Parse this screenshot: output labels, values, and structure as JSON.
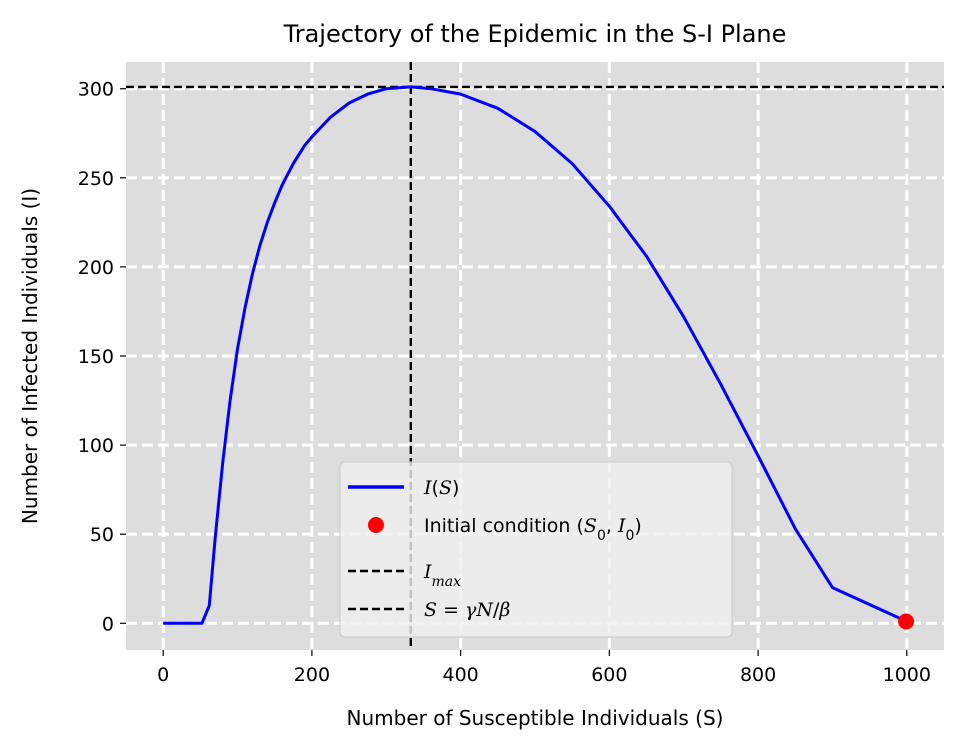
{
  "chart_data": {
    "type": "line",
    "title": "Trajectory of the Epidemic in the S-I Plane",
    "xlabel": "Number of Susceptible Individuals (S)",
    "ylabel": "Number of Infected Individuals (I)",
    "xlim": [
      -50,
      1050
    ],
    "ylim": [
      -15,
      315
    ],
    "xticks": [
      0,
      200,
      400,
      600,
      800,
      1000
    ],
    "yticks": [
      0,
      50,
      100,
      150,
      200,
      250,
      300
    ],
    "grid": true,
    "grid_style": "dashed white",
    "background": "#dddddd",
    "legend_position": "lower center",
    "series": [
      {
        "name": "I(S)",
        "kind": "line",
        "color": "#0000ff",
        "points": [
          [
            0,
            0
          ],
          [
            10,
            0
          ],
          [
            20,
            0
          ],
          [
            30,
            0
          ],
          [
            40,
            0
          ],
          [
            52,
            0
          ],
          [
            62,
            10
          ],
          [
            70,
            48
          ],
          [
            80,
            90
          ],
          [
            90,
            125
          ],
          [
            100,
            154
          ],
          [
            110,
            177
          ],
          [
            120,
            196
          ],
          [
            130,
            212
          ],
          [
            140,
            225
          ],
          [
            150,
            236
          ],
          [
            160,
            246
          ],
          [
            175,
            258
          ],
          [
            190,
            268
          ],
          [
            200,
            273
          ],
          [
            225,
            284
          ],
          [
            250,
            292
          ],
          [
            275,
            297
          ],
          [
            300,
            300
          ],
          [
            333,
            301
          ],
          [
            360,
            300
          ],
          [
            400,
            297
          ],
          [
            450,
            289
          ],
          [
            500,
            276
          ],
          [
            550,
            258
          ],
          [
            600,
            234
          ],
          [
            650,
            206
          ],
          [
            700,
            172
          ],
          [
            750,
            134
          ],
          [
            800,
            94
          ],
          [
            850,
            53
          ],
          [
            900,
            20
          ],
          [
            1000,
            1
          ]
        ]
      },
      {
        "name": "Initial condition (S0, I0)",
        "kind": "point",
        "color": "#ff0000",
        "points": [
          [
            999,
            1
          ]
        ]
      },
      {
        "name": "Imax",
        "kind": "hline",
        "color": "#000000",
        "y": 301
      },
      {
        "name": "S = γN/β",
        "kind": "vline",
        "color": "#000000",
        "x": 333
      }
    ]
  },
  "legend": {
    "items": [
      {
        "label": "I(S)"
      },
      {
        "label_prefix": "Initial condition (",
        "label_math": "S0, I0",
        "label_suffix": ")"
      },
      {
        "label": "Imax"
      },
      {
        "label": "S = γN/β"
      }
    ]
  }
}
